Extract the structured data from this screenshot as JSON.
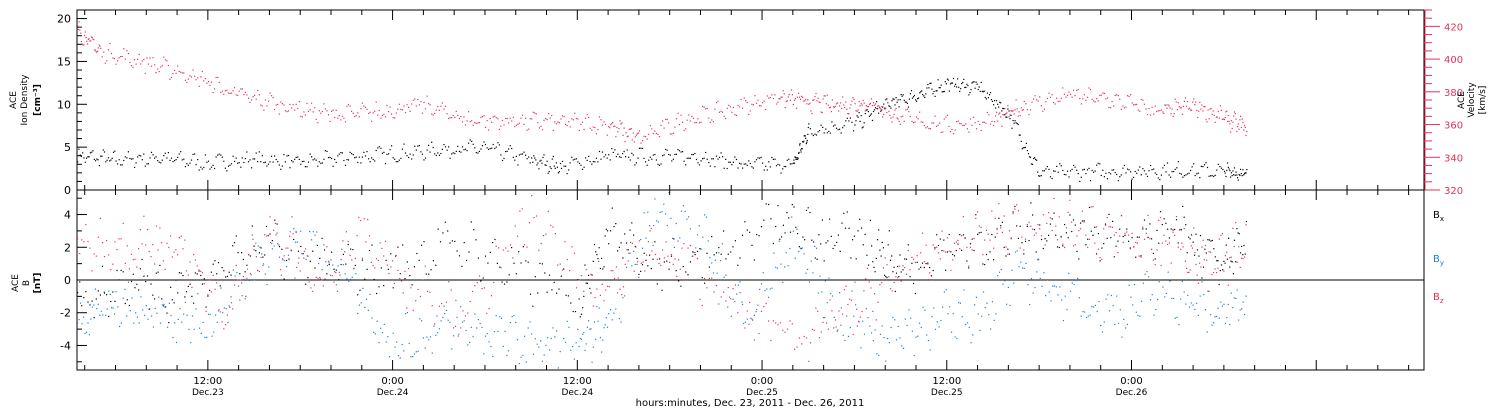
{
  "colors": {
    "density": "#000000",
    "velocity": "#e8305a",
    "bx": "#000000",
    "by": "#1f7fd8",
    "bz": "#e8305a",
    "frame": "#000000"
  },
  "x_axis": {
    "label": "hours:minutes, Dec. 23, 2011 - Dec. 26, 2011",
    "start": "2011-12-23T03:30",
    "end": "2011-12-26T19:00",
    "ticks": [
      {
        "datetime": "2011-12-23T12:00",
        "time": "12:00",
        "date": "Dec.23"
      },
      {
        "datetime": "2011-12-24T00:00",
        "time": "0:00",
        "date": "Dec.24"
      },
      {
        "datetime": "2011-12-24T12:00",
        "time": "12:00",
        "date": "Dec.24"
      },
      {
        "datetime": "2011-12-25T00:00",
        "time": "0:00",
        "date": "Dec.25"
      },
      {
        "datetime": "2011-12-25T12:00",
        "time": "12:00",
        "date": "Dec.25"
      },
      {
        "datetime": "2011-12-26T00:00",
        "time": "0:00",
        "date": "Dec.26"
      }
    ]
  },
  "chart_data": [
    {
      "type": "scatter",
      "panel": "top",
      "ylabel_left": [
        "ACE",
        "Ion Density",
        "[cm⁻³]"
      ],
      "ylabel_right": [
        "ACE",
        "Velocity",
        "[km/s]"
      ],
      "ylim_left": [
        0,
        21
      ],
      "ylim_right": [
        320,
        430
      ],
      "yticks_left": [
        "0",
        "5",
        "10",
        "15",
        "20"
      ],
      "yticks_right": [
        "320",
        "340",
        "360",
        "380",
        "400",
        "420"
      ],
      "grid": false,
      "series": [
        {
          "axis": "left",
          "color_key": "density",
          "points": [
            [
              "2011-12-23T03:30",
              4.0
            ],
            [
              "2011-12-23T06:00",
              3.6
            ],
            [
              "2011-12-23T09:00",
              3.8
            ],
            [
              "2011-12-23T12:00",
              3.2
            ],
            [
              "2011-12-23T15:00",
              3.6
            ],
            [
              "2011-12-23T18:00",
              3.3
            ],
            [
              "2011-12-23T21:00",
              3.8
            ],
            [
              "2011-12-24T00:00",
              4.3
            ],
            [
              "2011-12-24T03:00",
              4.7
            ],
            [
              "2011-12-24T06:00",
              5.0
            ],
            [
              "2011-12-24T09:00",
              3.5
            ],
            [
              "2011-12-24T11:00",
              2.8
            ],
            [
              "2011-12-24T14:00",
              4.0
            ],
            [
              "2011-12-24T17:00",
              4.0
            ],
            [
              "2011-12-24T20:00",
              3.9
            ],
            [
              "2011-12-24T23:00",
              3.0
            ],
            [
              "2011-12-25T02:00",
              3.0
            ],
            [
              "2011-12-25T03:00",
              7.0
            ],
            [
              "2011-12-25T06:00",
              7.8
            ],
            [
              "2011-12-25T08:00",
              10.0
            ],
            [
              "2011-12-25T10:00",
              11.0
            ],
            [
              "2011-12-25T12:00",
              12.5
            ],
            [
              "2011-12-25T14:00",
              12.0
            ],
            [
              "2011-12-25T16:00",
              9.0
            ],
            [
              "2011-12-25T18:00",
              2.0
            ],
            [
              "2011-12-25T21:00",
              2.2
            ],
            [
              "2011-12-26T00:00",
              2.2
            ],
            [
              "2011-12-26T03:00",
              2.4
            ],
            [
              "2011-12-26T06:00",
              2.2
            ],
            [
              "2011-12-26T07:30",
              2.0
            ]
          ]
        },
        {
          "axis": "right",
          "color_key": "velocity",
          "points": [
            [
              "2011-12-23T03:30",
              418
            ],
            [
              "2011-12-23T05:00",
              405
            ],
            [
              "2011-12-23T08:00",
              398
            ],
            [
              "2011-12-23T11:00",
              390
            ],
            [
              "2011-12-23T14:00",
              378
            ],
            [
              "2011-12-23T17:00",
              372
            ],
            [
              "2011-12-23T20:00",
              366
            ],
            [
              "2011-12-23T23:00",
              368
            ],
            [
              "2011-12-24T02:00",
              372
            ],
            [
              "2011-12-24T05:00",
              363
            ],
            [
              "2011-12-24T08:00",
              362
            ],
            [
              "2011-12-24T11:00",
              362
            ],
            [
              "2011-12-24T14:00",
              360
            ],
            [
              "2011-12-24T16:00",
              352
            ],
            [
              "2011-12-24T19:00",
              363
            ],
            [
              "2011-12-24T22:00",
              370
            ],
            [
              "2011-12-25T01:00",
              377
            ],
            [
              "2011-12-25T03:00",
              374
            ],
            [
              "2011-12-25T05:00",
              372
            ],
            [
              "2011-12-25T07:00",
              374
            ],
            [
              "2011-12-25T09:00",
              364
            ],
            [
              "2011-12-25T12:00",
              360
            ],
            [
              "2011-12-25T15:00",
              362
            ],
            [
              "2011-12-25T17:00",
              372
            ],
            [
              "2011-12-25T20:00",
              378
            ],
            [
              "2011-12-25T23:00",
              375
            ],
            [
              "2011-12-26T02:00",
              368
            ],
            [
              "2011-12-26T04:00",
              372
            ],
            [
              "2011-12-26T06:00",
              364
            ],
            [
              "2011-12-26T07:30",
              358
            ]
          ]
        }
      ]
    },
    {
      "type": "scatter",
      "panel": "bottom",
      "ylabel_left": [
        "ACE",
        "B",
        "[nT]"
      ],
      "ylim_left": [
        -5.5,
        5.5
      ],
      "yticks_left": [
        "-4",
        "-2",
        "0",
        "2",
        "4"
      ],
      "zero_line": true,
      "legend_position": "right",
      "grid": false,
      "series": [
        {
          "name": "Bx",
          "label_main": "B",
          "label_sub": "x",
          "color_key": "bx",
          "points": [
            [
              "2011-12-23T03:30",
              -1.5
            ],
            [
              "2011-12-23T07:00",
              0.0
            ],
            [
              "2011-12-23T10:00",
              -1.0
            ],
            [
              "2011-12-23T13:00",
              1.0
            ],
            [
              "2011-12-23T16:00",
              2.0
            ],
            [
              "2011-12-23T20:00",
              1.0
            ],
            [
              "2011-12-24T00:00",
              0.5
            ],
            [
              "2011-12-24T04:00",
              2.5
            ],
            [
              "2011-12-24T08:00",
              0.5
            ],
            [
              "2011-12-24T12:00",
              -1.0
            ],
            [
              "2011-12-24T14:00",
              3.0
            ],
            [
              "2011-12-24T17:00",
              1.0
            ],
            [
              "2011-12-24T21:00",
              1.5
            ],
            [
              "2011-12-25T01:00",
              3.5
            ],
            [
              "2011-12-25T04:00",
              2.5
            ],
            [
              "2011-12-25T07:00",
              2.5
            ],
            [
              "2011-12-25T09:00",
              0.5
            ],
            [
              "2011-12-25T12:00",
              2.0
            ],
            [
              "2011-12-25T15:00",
              2.5
            ],
            [
              "2011-12-25T18:00",
              3.0
            ],
            [
              "2011-12-25T21:00",
              3.0
            ],
            [
              "2011-12-26T00:00",
              2.5
            ],
            [
              "2011-12-26T03:00",
              3.0
            ],
            [
              "2011-12-26T05:30",
              1.0
            ],
            [
              "2011-12-26T07:30",
              2.0
            ]
          ]
        },
        {
          "name": "By",
          "label_main": "B",
          "label_sub": "y",
          "color_key": "by",
          "points": [
            [
              "2011-12-23T03:30",
              -2.5
            ],
            [
              "2011-12-23T06:00",
              -1.5
            ],
            [
              "2011-12-23T09:00",
              -2.5
            ],
            [
              "2011-12-23T12:00",
              -2.5
            ],
            [
              "2011-12-23T15:00",
              1.0
            ],
            [
              "2011-12-23T18:00",
              2.5
            ],
            [
              "2011-12-23T21:00",
              0.5
            ],
            [
              "2011-12-24T00:00",
              -4.0
            ],
            [
              "2011-12-24T03:00",
              -3.0
            ],
            [
              "2011-12-24T06:00",
              -3.0
            ],
            [
              "2011-12-24T09:00",
              -4.0
            ],
            [
              "2011-12-24T12:00",
              -4.0
            ],
            [
              "2011-12-24T14:00",
              -2.5
            ],
            [
              "2011-12-24T17:00",
              4.0
            ],
            [
              "2011-12-24T20:00",
              3.0
            ],
            [
              "2011-12-24T23:00",
              -2.5
            ],
            [
              "2011-12-25T02:00",
              2.5
            ],
            [
              "2011-12-25T05:00",
              -2.0
            ],
            [
              "2011-12-25T08:00",
              -3.5
            ],
            [
              "2011-12-25T11:00",
              -2.5
            ],
            [
              "2011-12-25T14:00",
              -2.0
            ],
            [
              "2011-12-25T17:00",
              0.5
            ],
            [
              "2011-12-25T20:00",
              -1.0
            ],
            [
              "2011-12-25T23:00",
              -2.0
            ],
            [
              "2011-12-26T02:00",
              -0.5
            ],
            [
              "2011-12-26T05:00",
              -2.0
            ],
            [
              "2011-12-26T07:30",
              -1.5
            ]
          ]
        },
        {
          "name": "Bz",
          "label_main": "B",
          "label_sub": "z",
          "color_key": "bz",
          "points": [
            [
              "2011-12-23T03:30",
              2.0
            ],
            [
              "2011-12-23T07:00",
              2.5
            ],
            [
              "2011-12-23T10:00",
              2.0
            ],
            [
              "2011-12-23T13:00",
              -2.0
            ],
            [
              "2011-12-23T16:00",
              3.0
            ],
            [
              "2011-12-23T19:00",
              0.0
            ],
            [
              "2011-12-23T22:00",
              2.5
            ],
            [
              "2011-12-24T01:00",
              0.0
            ],
            [
              "2011-12-24T05:00",
              -2.0
            ],
            [
              "2011-12-24T09:00",
              4.0
            ],
            [
              "2011-12-24T13:00",
              -1.0
            ],
            [
              "2011-12-24T16:00",
              2.0
            ],
            [
              "2011-12-24T19:00",
              1.0
            ],
            [
              "2011-12-24T23:00",
              -2.0
            ],
            [
              "2011-12-25T03:00",
              -3.5
            ],
            [
              "2011-12-25T06:00",
              -1.5
            ],
            [
              "2011-12-25T09:00",
              0.5
            ],
            [
              "2011-12-25T12:00",
              2.0
            ],
            [
              "2011-12-25T15:00",
              3.0
            ],
            [
              "2011-12-25T18:00",
              3.5
            ],
            [
              "2011-12-25T21:00",
              3.0
            ],
            [
              "2011-12-26T00:00",
              2.5
            ],
            [
              "2011-12-26T03:00",
              2.5
            ],
            [
              "2011-12-26T05:00",
              0.5
            ],
            [
              "2011-12-26T07:30",
              2.5
            ]
          ]
        }
      ]
    }
  ]
}
